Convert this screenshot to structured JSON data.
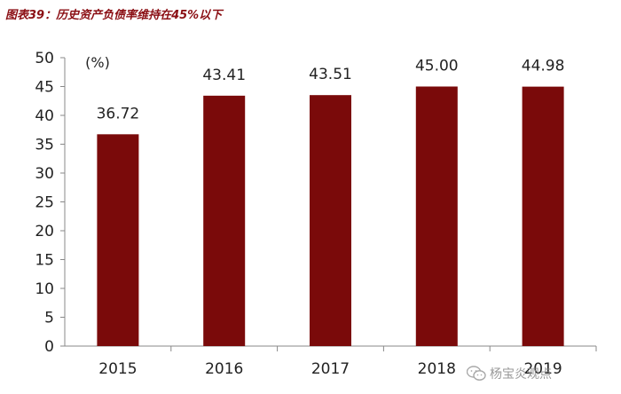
{
  "figure_title": "图表39：历史资产负债率维持在45%以下",
  "watermark_text": "杨宝炎观点",
  "watermark_icon": "wechat-icon",
  "chart_data": {
    "type": "bar",
    "title": "",
    "xlabel": "",
    "ylabel": "",
    "unit_label": "(%)",
    "categories": [
      "2015",
      "2016",
      "2017",
      "2018",
      "2019"
    ],
    "values": [
      36.72,
      43.41,
      43.51,
      45.0,
      44.98
    ],
    "value_labels": [
      "36.72",
      "43.41",
      "43.51",
      "45.00",
      "44.98"
    ],
    "ylim": [
      0,
      50
    ],
    "yticks": [
      0,
      5,
      10,
      15,
      20,
      25,
      30,
      35,
      40,
      45,
      50
    ],
    "grid": false,
    "legend": "none",
    "bar_color": "#7a0a0a",
    "title_color": "#8b0f14"
  }
}
